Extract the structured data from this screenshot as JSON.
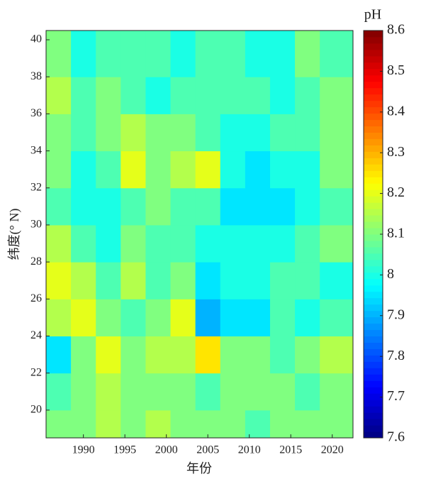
{
  "chart_data": {
    "type": "heatmap",
    "xlabel": "年份",
    "ylabel": "纬度(°  N)",
    "colorbar_title": "pH",
    "colormap": "jet",
    "x": [
      1987,
      1990,
      1993,
      1996,
      1999,
      2002,
      2005,
      2008,
      2011,
      2014,
      2017,
      2020
    ],
    "y": [
      19,
      21,
      23,
      25,
      27,
      29,
      31,
      33,
      35,
      37,
      39
    ],
    "z": [
      [
        8.1,
        8.1,
        8.15,
        8.1,
        8.15,
        8.1,
        8.1,
        8.1,
        8.05,
        8.1,
        8.1,
        8.1
      ],
      [
        8.05,
        8.1,
        8.15,
        8.1,
        8.1,
        8.1,
        8.05,
        8.1,
        8.1,
        8.1,
        8.05,
        8.1
      ],
      [
        7.95,
        8.1,
        8.2,
        8.1,
        8.15,
        8.15,
        8.25,
        8.1,
        8.1,
        8.05,
        8.1,
        8.15
      ],
      [
        8.15,
        8.2,
        8.1,
        8.05,
        8.1,
        8.2,
        7.9,
        7.95,
        7.95,
        8.05,
        8.0,
        8.05
      ],
      [
        8.2,
        8.15,
        8.05,
        8.15,
        8.05,
        8.1,
        7.95,
        8.0,
        8.0,
        8.05,
        8.05,
        8.0
      ],
      [
        8.15,
        8.05,
        8.0,
        8.1,
        8.05,
        8.05,
        8.0,
        8.0,
        8.0,
        8.0,
        8.05,
        8.1
      ],
      [
        8.05,
        8.0,
        8.0,
        8.05,
        8.1,
        8.05,
        8.05,
        7.95,
        7.95,
        7.95,
        8.0,
        8.05
      ],
      [
        8.1,
        8.0,
        8.05,
        8.2,
        8.1,
        8.15,
        8.2,
        8.0,
        7.95,
        8.0,
        8.0,
        8.1
      ],
      [
        8.1,
        8.05,
        8.1,
        8.15,
        8.1,
        8.1,
        8.05,
        8.0,
        8.0,
        8.05,
        8.05,
        8.1
      ],
      [
        8.15,
        8.05,
        8.1,
        8.05,
        8.0,
        8.05,
        8.05,
        8.05,
        8.05,
        8.0,
        8.05,
        8.1
      ],
      [
        8.1,
        8.0,
        8.05,
        8.05,
        8.05,
        8.0,
        8.05,
        8.05,
        8.0,
        8.0,
        8.1,
        8.05
      ]
    ],
    "xlim": [
      1985.5,
      2022.5
    ],
    "xticks": [
      1990,
      1995,
      2000,
      2005,
      2010,
      2015,
      2020
    ],
    "ylim": [
      18.5,
      40.5
    ],
    "yticks": [
      20,
      22,
      24,
      26,
      28,
      30,
      32,
      34,
      36,
      38,
      40
    ],
    "clim": [
      7.6,
      8.6
    ],
    "cticks": [
      7.6,
      7.7,
      7.8,
      7.9,
      8,
      8.1,
      8.2,
      8.3,
      8.4,
      8.5,
      8.6
    ]
  }
}
